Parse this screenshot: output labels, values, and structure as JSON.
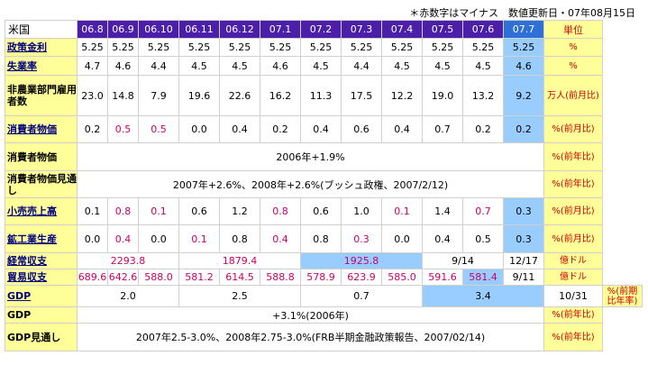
{
  "note": "＊赤数字はマイナス　数値更新日・07年08月15日",
  "corner": "米国",
  "months": [
    "06.8",
    "06.9",
    "06.10",
    "06.11",
    "06.12",
    "07.1",
    "07.2",
    "07.3",
    "07.4",
    "07.5",
    "07.6",
    "07.7"
  ],
  "unit_header": "単位",
  "rows": {
    "policy_rate": {
      "label": "政策金利",
      "values": [
        "5.25",
        "5.25",
        "5.25",
        "5.25",
        "5.25",
        "5.25",
        "5.25",
        "5.25",
        "5.25",
        "5.25",
        "5.25",
        "5.25"
      ],
      "unit": "%"
    },
    "unemployment": {
      "label": "失業率",
      "values": [
        "4.7",
        "4.6",
        "4.4",
        "4.5",
        "4.5",
        "4.6",
        "4.5",
        "4.4",
        "4.5",
        "4.5",
        "4.5",
        "4.6"
      ],
      "unit": "%"
    },
    "payrolls": {
      "label": "非農業部門雇用者数",
      "values": [
        "23.0",
        "14.8",
        "7.9",
        "19.6",
        "22.6",
        "16.2",
        "11.3",
        "17.5",
        "12.2",
        "19.0",
        "13.2",
        "9.2"
      ],
      "unit": "万人(前月比)"
    },
    "cpi_mom": {
      "label": "消費者物価",
      "values": [
        "0.2",
        "0.5",
        "0.5",
        "0.0",
        "0.4",
        "0.2",
        "0.4",
        "0.6",
        "0.4",
        "0.7",
        "0.2",
        "0.2"
      ],
      "unit": "%(前月比)"
    },
    "cpi_yoy": {
      "label": "消費者物価",
      "text": "2006年+1.9%",
      "unit": "%(前年比)"
    },
    "cpi_outlook": {
      "label": "消費者物価見通し",
      "text": "2007年+2.6%、2008年+2.6%(ブッシュ政権、2007/2/12)",
      "unit": "%(前年比)"
    },
    "retail": {
      "label": "小売売上高",
      "values": [
        "0.1",
        "0.8",
        "0.1",
        "0.6",
        "1.2",
        "0.8",
        "0.6",
        "1.0",
        "0.1",
        "1.4",
        "0.7",
        "0.3"
      ],
      "unit": "%(前月比)"
    },
    "industrial": {
      "label": "鉱工業生産",
      "values": [
        "0.0",
        "0.4",
        "0.0",
        "0.1",
        "0.8",
        "0.4",
        "0.8",
        "0.3",
        "0.0",
        "0.4",
        "0.5",
        "0.3"
      ],
      "unit": "%(前月比)"
    },
    "current_account": {
      "label": "経常収支",
      "v1": "2293.8",
      "v2": "1879.4",
      "v3": "1925.8",
      "v4": "9/14",
      "v5": "12/17",
      "unit": "億ドル"
    },
    "trade": {
      "label": "貿易収支",
      "values": [
        "689.6",
        "642.6",
        "588.0",
        "581.2",
        "614.5",
        "588.8",
        "578.9",
        "623.9",
        "585.0",
        "591.6",
        "581.4",
        "9/11"
      ],
      "unit": "億ドル"
    },
    "gdp": {
      "label": "GDP",
      "v1": "2.0",
      "v2": "2.5",
      "v3": "0.7",
      "v4": "3.4",
      "v5": "10/31",
      "unit": "%(前期比年率)"
    },
    "gdp_yoy": {
      "label": "GDP",
      "text": "+3.1%(2006年)",
      "unit": "%(前年比)"
    },
    "gdp_outlook": {
      "label": "GDP見通し",
      "text": "2007年2.5-3.0%、2008年2.75-3.0%(FRB半期金融政策報告、2007/02/14)",
      "unit": "%(前年比)"
    }
  }
}
